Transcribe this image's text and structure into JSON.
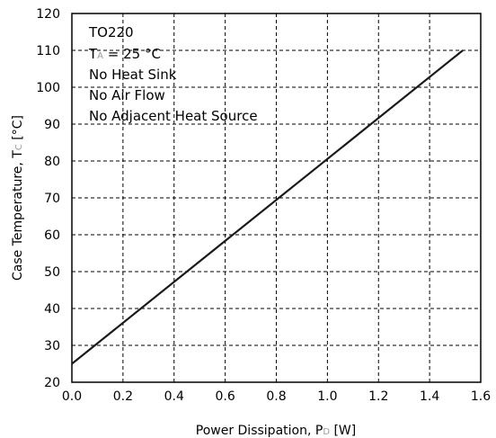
{
  "chart_data": {
    "type": "line",
    "xlabel": {
      "main": "Power Dissipation, P",
      "sub": "D",
      "unit": " [W]"
    },
    "ylabel": {
      "main": "Case Temperature, T",
      "sub": "C",
      "unit": " [°C]"
    },
    "xlim": [
      0.0,
      1.6
    ],
    "ylim": [
      20,
      120
    ],
    "xticks": [
      0.0,
      0.2,
      0.4,
      0.6,
      0.8,
      1.0,
      1.2,
      1.4,
      1.6
    ],
    "xtick_labels": [
      "0.0",
      "0.2",
      "0.4",
      "0.6",
      "0.8",
      "1.0",
      "1.2",
      "1.4",
      "1.6"
    ],
    "yticks": [
      20,
      30,
      40,
      50,
      60,
      70,
      80,
      90,
      100,
      110,
      120
    ],
    "ytick_labels": [
      "20",
      "30",
      "40",
      "50",
      "60",
      "70",
      "80",
      "90",
      "100",
      "110",
      "120"
    ],
    "grid": true,
    "grid_style": "dashed",
    "series": [
      {
        "x": [
          0.0,
          1.53
        ],
        "y": [
          25,
          110
        ],
        "color": "#1a1a1a"
      }
    ],
    "annotations": {
      "package": "TO220",
      "ambient": {
        "main": "T",
        "sub": "A",
        "rest": " = 25 °C"
      },
      "line3": "No Heat Sink",
      "line4": "No Air Flow",
      "line5": "No Adjacent Heat Source"
    }
  }
}
